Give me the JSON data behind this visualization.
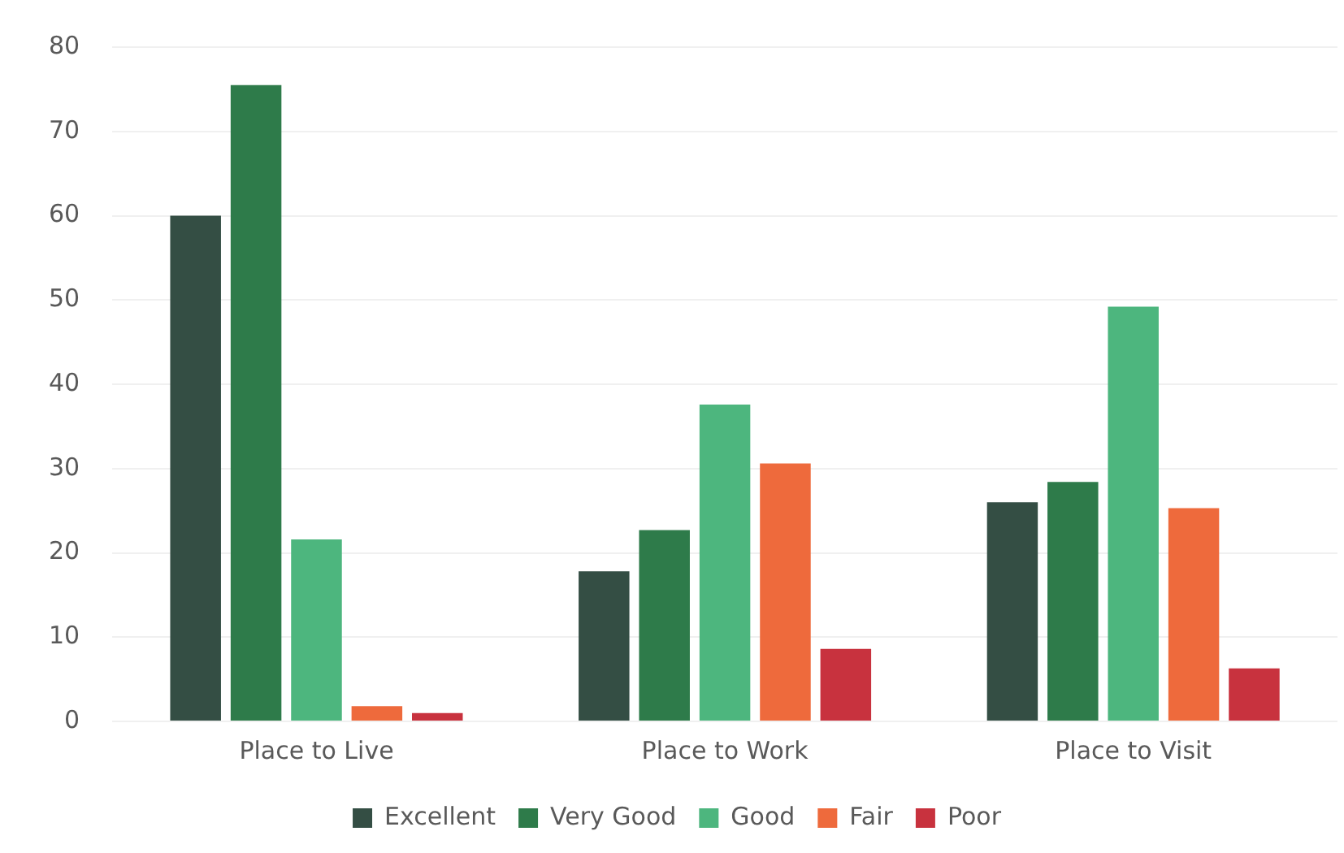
{
  "chart_data": {
    "type": "bar",
    "categories": [
      "Place to Live",
      "Place to Work",
      "Place to Visit"
    ],
    "series": [
      {
        "name": "Excellent",
        "color": "#344e44",
        "values": [
          60,
          17.8,
          26
        ]
      },
      {
        "name": "Very Good",
        "color": "#2e7b4a",
        "values": [
          75.5,
          22.7,
          28.4
        ]
      },
      {
        "name": "Good",
        "color": "#4db67e",
        "values": [
          21.6,
          37.6,
          49.2
        ]
      },
      {
        "name": "Fair",
        "color": "#ee6a3c",
        "values": [
          1.8,
          30.6,
          25.3
        ]
      },
      {
        "name": "Poor",
        "color": "#c8323e",
        "values": [
          1,
          8.6,
          6.3
        ]
      }
    ],
    "ylim": [
      0,
      80
    ],
    "yticks": [
      0,
      10,
      20,
      30,
      40,
      50,
      60,
      70,
      80
    ],
    "grid": "y",
    "legend": "bottom"
  }
}
